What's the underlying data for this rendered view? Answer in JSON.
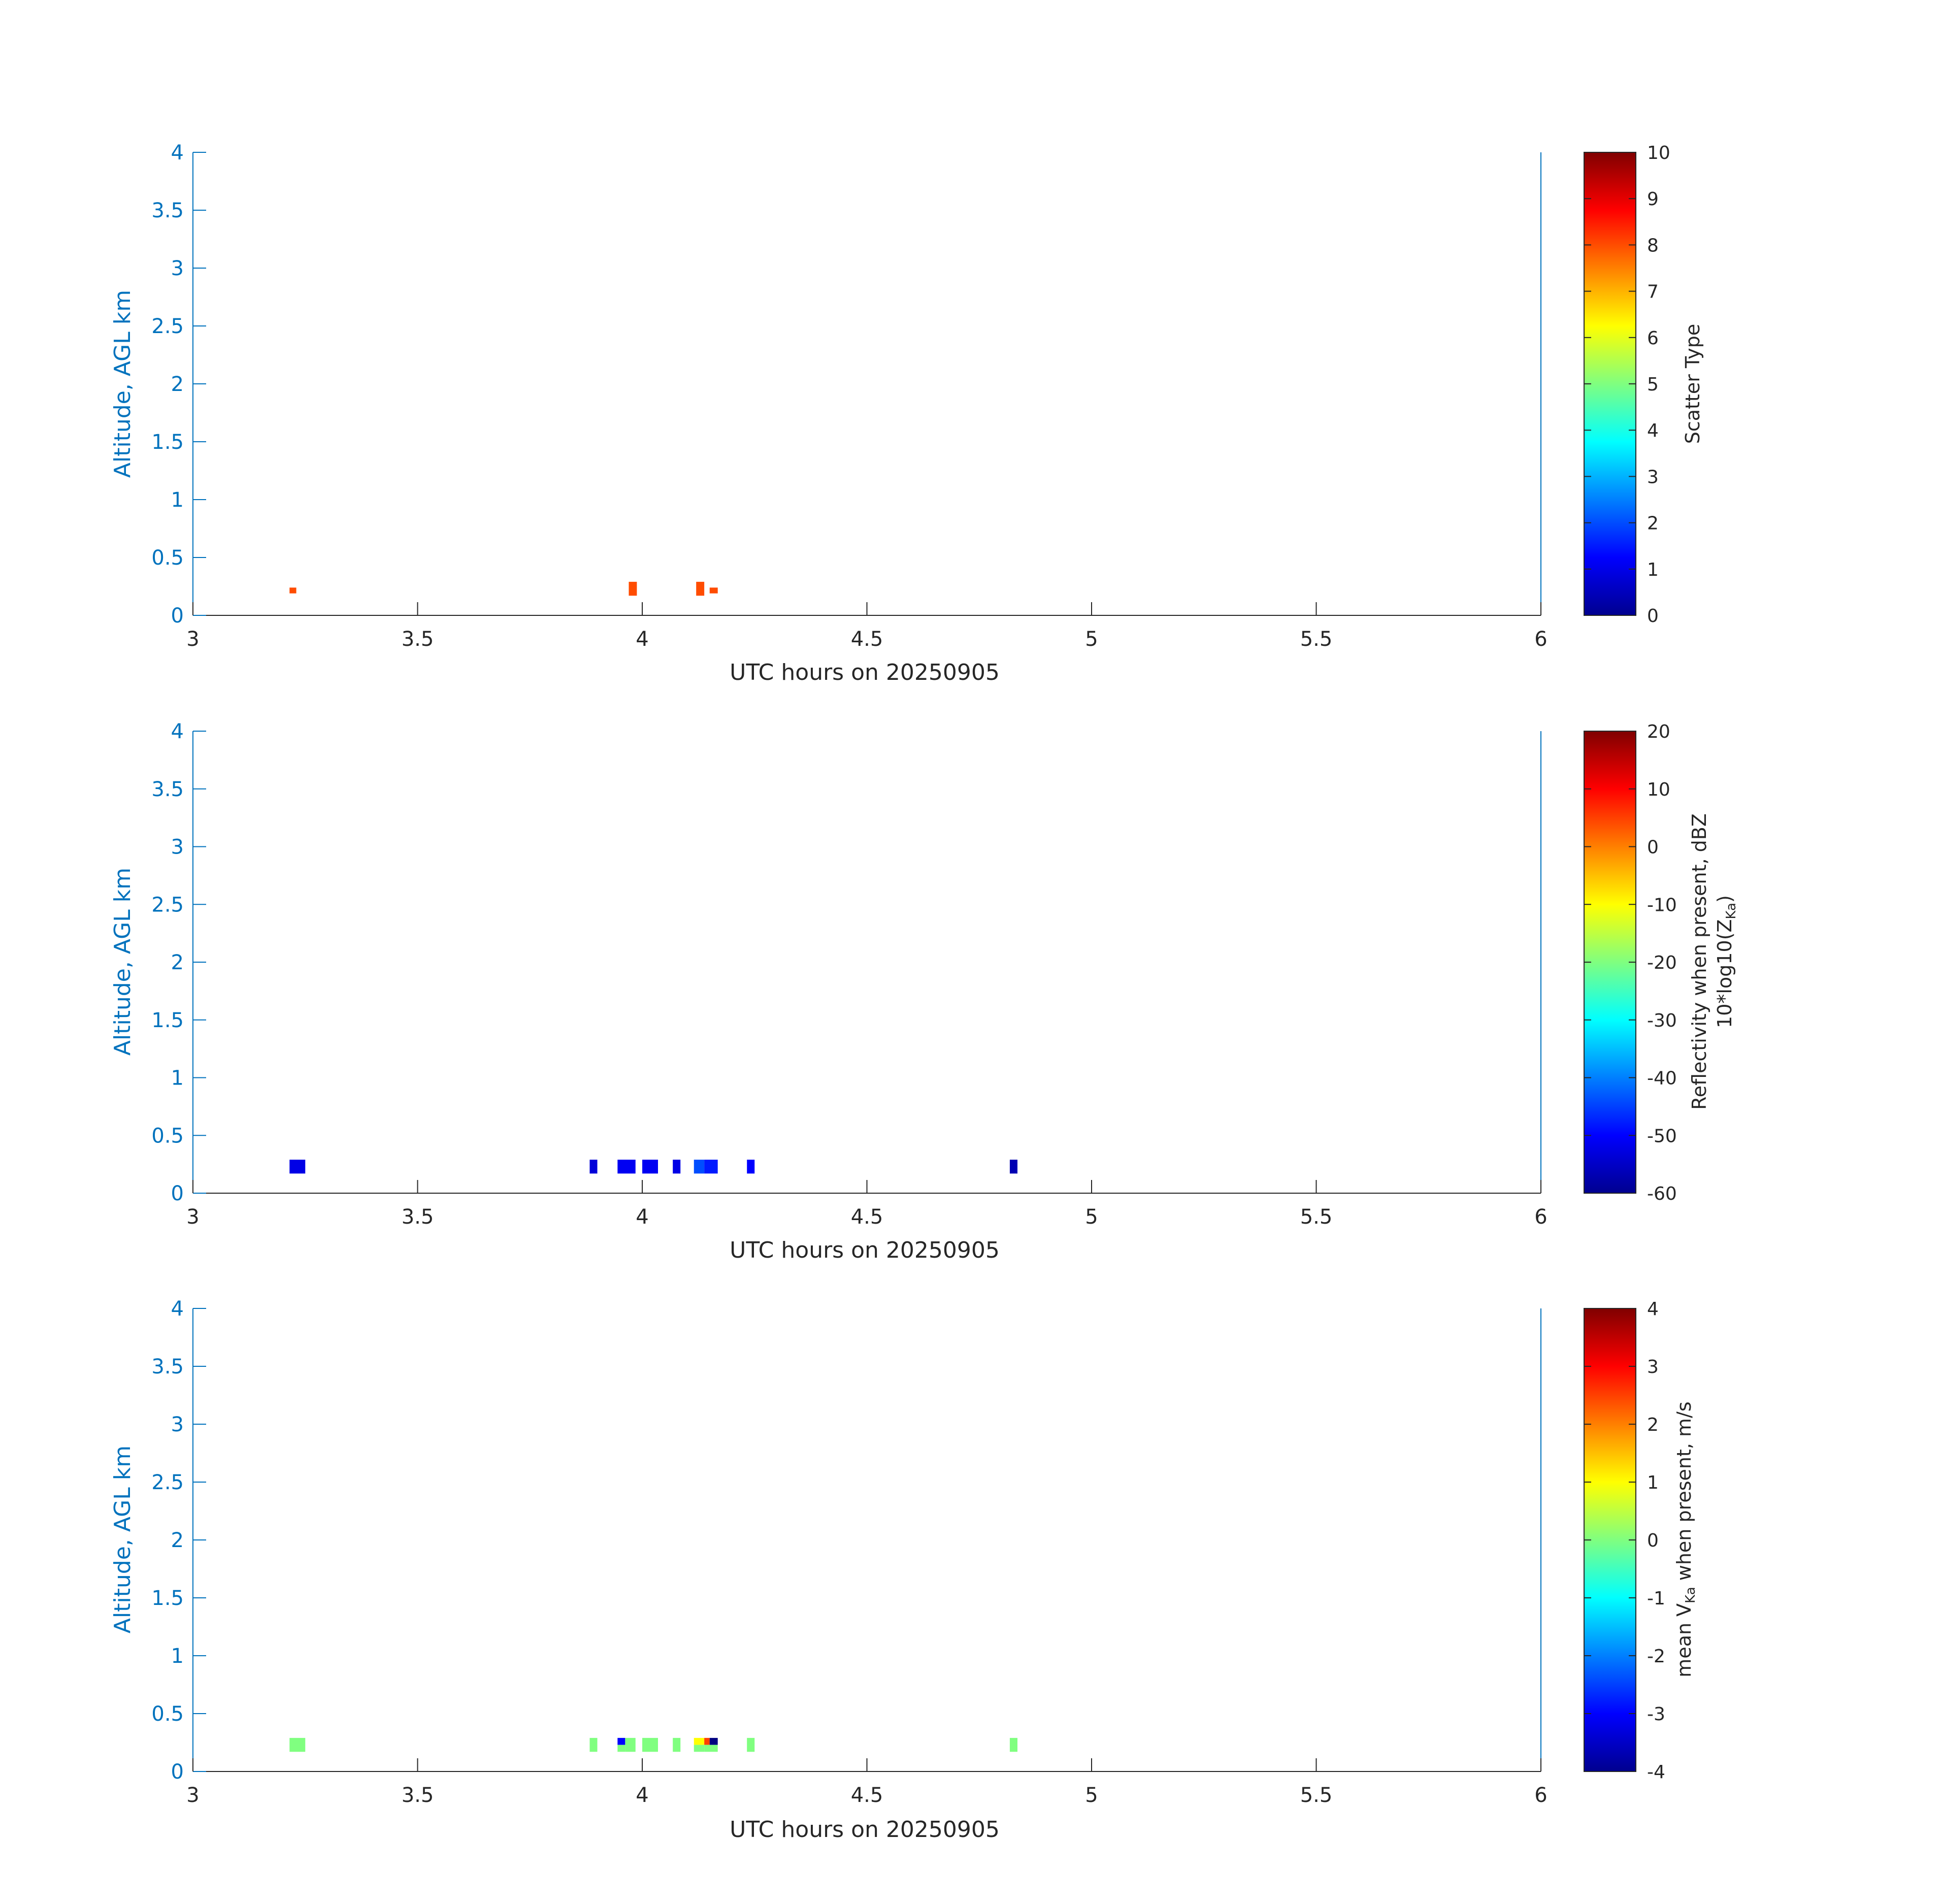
{
  "chart_data": [
    {
      "type": "heatmap",
      "xlabel": "UTC hours on 20250905",
      "ylabel": "Altitude, AGL km",
      "xlim": [
        3,
        6
      ],
      "ylim": [
        0,
        4
      ],
      "xticks": [
        "3",
        "3.5",
        "4",
        "4.5",
        "5",
        "5.5",
        "6"
      ],
      "yticks": [
        "0",
        "0.5",
        "1",
        "1.5",
        "2",
        "2.5",
        "3",
        "3.5",
        "4"
      ],
      "colorbar": {
        "label": "Scatter Type",
        "clim": [
          0,
          10
        ],
        "ticks": [
          "0",
          "1",
          "2",
          "3",
          "4",
          "5",
          "6",
          "7",
          "8",
          "9",
          "10"
        ]
      },
      "cells": [
        {
          "t0": 3.215,
          "t1": 3.23,
          "z0": 0.19,
          "z1": 0.24,
          "value": 8
        },
        {
          "t0": 3.97,
          "t1": 3.988,
          "z0": 0.17,
          "z1": 0.29,
          "value": 8
        },
        {
          "t0": 4.12,
          "t1": 4.138,
          "z0": 0.17,
          "z1": 0.29,
          "value": 8
        },
        {
          "t0": 4.15,
          "t1": 4.168,
          "z0": 0.19,
          "z1": 0.24,
          "value": 8
        }
      ]
    },
    {
      "type": "heatmap",
      "xlabel": "UTC hours on 20250905",
      "ylabel": "Altitude, AGL km",
      "xlim": [
        3,
        6
      ],
      "ylim": [
        0,
        4
      ],
      "xticks": [
        "3",
        "3.5",
        "4",
        "4.5",
        "5",
        "5.5",
        "6"
      ],
      "yticks": [
        "0",
        "0.5",
        "1",
        "1.5",
        "2",
        "2.5",
        "3",
        "3.5",
        "4"
      ],
      "colorbar": {
        "label_line1": "Reflectivity when present, dBZ",
        "label_line2": "10*log10(Z",
        "label_sub": "Ka",
        "label_end": ")",
        "clim": [
          -60,
          20
        ],
        "ticks": [
          "-60",
          "-50",
          "-40",
          "-30",
          "-20",
          "-10",
          "0",
          "10",
          "20"
        ]
      },
      "cells": [
        {
          "t0": 3.215,
          "t1": 3.25,
          "z0": 0.17,
          "z1": 0.29,
          "value": -52
        },
        {
          "t0": 3.883,
          "t1": 3.9,
          "z0": 0.17,
          "z1": 0.29,
          "value": -53
        },
        {
          "t0": 3.945,
          "t1": 3.985,
          "z0": 0.17,
          "z1": 0.29,
          "value": -51
        },
        {
          "t0": 4.0,
          "t1": 4.035,
          "z0": 0.17,
          "z1": 0.29,
          "value": -51
        },
        {
          "t0": 4.068,
          "t1": 4.085,
          "z0": 0.17,
          "z1": 0.29,
          "value": -52
        },
        {
          "t0": 4.115,
          "t1": 4.138,
          "z0": 0.17,
          "z1": 0.29,
          "value": -44
        },
        {
          "t0": 4.138,
          "t1": 4.168,
          "z0": 0.17,
          "z1": 0.29,
          "value": -48
        },
        {
          "t0": 4.233,
          "t1": 4.25,
          "z0": 0.17,
          "z1": 0.29,
          "value": -50
        },
        {
          "t0": 4.818,
          "t1": 4.835,
          "z0": 0.17,
          "z1": 0.29,
          "value": -56
        }
      ]
    },
    {
      "type": "heatmap",
      "xlabel": "UTC hours on 20250905",
      "ylabel": "Altitude, AGL km",
      "xlim": [
        3,
        6
      ],
      "ylim": [
        0,
        4
      ],
      "xticks": [
        "3",
        "3.5",
        "4",
        "4.5",
        "5",
        "5.5",
        "6"
      ],
      "yticks": [
        "0",
        "0.5",
        "1",
        "1.5",
        "2",
        "2.5",
        "3",
        "3.5",
        "4"
      ],
      "colorbar": {
        "label_pre": "mean V",
        "label_sub": "Ka",
        "label_post": " when present, m/s",
        "clim": [
          -4,
          4
        ],
        "ticks": [
          "-4",
          "-3",
          "-2",
          "-1",
          "0",
          "1",
          "2",
          "3",
          "4"
        ]
      },
      "cells": [
        {
          "t0": 3.215,
          "t1": 3.25,
          "z0": 0.17,
          "z1": 0.29,
          "value": 0.0
        },
        {
          "t0": 3.883,
          "t1": 3.9,
          "z0": 0.17,
          "z1": 0.29,
          "value": 0.0
        },
        {
          "t0": 3.945,
          "t1": 3.962,
          "z0": 0.23,
          "z1": 0.29,
          "value": -3.0
        },
        {
          "t0": 3.945,
          "t1": 3.962,
          "z0": 0.17,
          "z1": 0.23,
          "value": 0.0
        },
        {
          "t0": 3.962,
          "t1": 3.985,
          "z0": 0.17,
          "z1": 0.29,
          "value": 0.0
        },
        {
          "t0": 4.0,
          "t1": 4.035,
          "z0": 0.17,
          "z1": 0.29,
          "value": 0.0
        },
        {
          "t0": 4.068,
          "t1": 4.085,
          "z0": 0.17,
          "z1": 0.29,
          "value": 0.0
        },
        {
          "t0": 4.115,
          "t1": 4.138,
          "z0": 0.23,
          "z1": 0.29,
          "value": 1.0
        },
        {
          "t0": 4.115,
          "t1": 4.138,
          "z0": 0.17,
          "z1": 0.23,
          "value": 0.0
        },
        {
          "t0": 4.138,
          "t1": 4.15,
          "z0": 0.23,
          "z1": 0.29,
          "value": 2.5
        },
        {
          "t0": 4.15,
          "t1": 4.168,
          "z0": 0.23,
          "z1": 0.29,
          "value": -4.0
        },
        {
          "t0": 4.138,
          "t1": 4.168,
          "z0": 0.17,
          "z1": 0.23,
          "value": 0.0
        },
        {
          "t0": 4.233,
          "t1": 4.25,
          "z0": 0.17,
          "z1": 0.29,
          "value": 0.0
        },
        {
          "t0": 4.818,
          "t1": 4.835,
          "z0": 0.17,
          "z1": 0.29,
          "value": 0.0
        }
      ]
    }
  ]
}
